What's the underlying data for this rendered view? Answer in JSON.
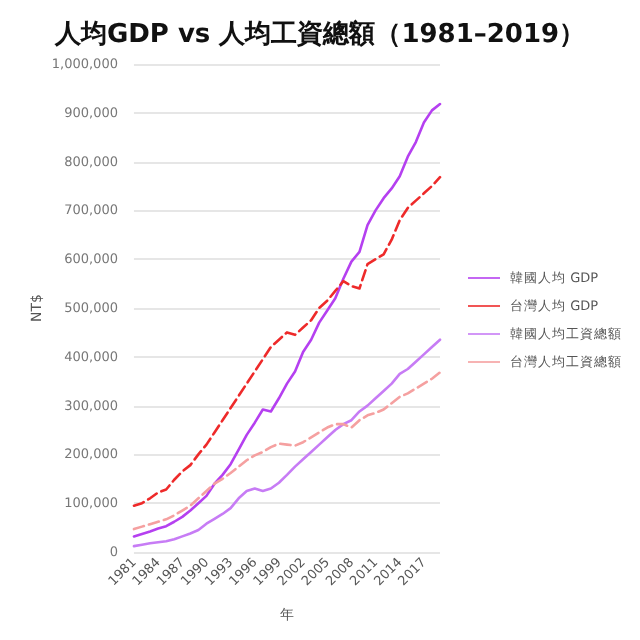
{
  "chart_data": {
    "type": "line",
    "title": "人均GDP vs 人均工資總額（1981–2019）",
    "xlabel": "年",
    "ylabel": "NT$",
    "categories": [
      "1981",
      null,
      null,
      "1984",
      null,
      null,
      "1987",
      null,
      null,
      "1990",
      null,
      null,
      "1993",
      null,
      null,
      "1996",
      null,
      null,
      "1999",
      null,
      null,
      "2002",
      null,
      null,
      "2005",
      null,
      null,
      "2008",
      null,
      null,
      "2011",
      null,
      null,
      "2014",
      null,
      null,
      "2017",
      null,
      null
    ],
    "series": [
      {
        "name": "韓國人均 GDP",
        "color": "#b540f0",
        "line_style": "solid",
        "values": [
          32000,
          37000,
          42000,
          48000,
          53000,
          62000,
          72000,
          85000,
          100000,
          115000,
          140000,
          158000,
          180000,
          210000,
          240000,
          265000,
          292000,
          288000,
          315000,
          345000,
          370000,
          410000,
          435000,
          470000,
          495000,
          520000,
          560000,
          595000,
          615000,
          670000,
          700000,
          725000,
          745000,
          770000,
          810000,
          840000,
          880000,
          905000,
          918000
        ]
      },
      {
        "name": "台灣人均 GDP",
        "color": "#ee2a2a",
        "line_style": "dashed",
        "values": [
          95000,
          100000,
          110000,
          122000,
          128000,
          148000,
          165000,
          178000,
          200000,
          220000,
          245000,
          270000,
          295000,
          320000,
          345000,
          370000,
          395000,
          420000,
          435000,
          450000,
          445000,
          460000,
          475000,
          500000,
          515000,
          535000,
          555000,
          545000,
          540000,
          590000,
          600000,
          610000,
          640000,
          680000,
          705000,
          720000,
          735000,
          750000,
          768000
        ]
      },
      {
        "name": "韓國人均工資總額",
        "color": "#c77cf5",
        "line_style": "solid",
        "values": [
          12000,
          15000,
          18000,
          20000,
          22000,
          26000,
          32000,
          38000,
          45000,
          58000,
          68000,
          78000,
          90000,
          110000,
          125000,
          130000,
          125000,
          130000,
          142000,
          158000,
          175000,
          190000,
          205000,
          220000,
          235000,
          250000,
          262000,
          270000,
          288000,
          300000,
          315000,
          330000,
          345000,
          365000,
          375000,
          390000,
          405000,
          420000,
          435000
        ]
      },
      {
        "name": "台灣人均工資總額",
        "color": "#f5a0a0",
        "line_style": "dashed",
        "values": [
          47000,
          52000,
          57000,
          62000,
          67000,
          75000,
          85000,
          95000,
          110000,
          125000,
          140000,
          150000,
          162000,
          175000,
          188000,
          198000,
          205000,
          215000,
          222000,
          220000,
          218000,
          225000,
          235000,
          245000,
          255000,
          262000,
          262000,
          255000,
          270000,
          280000,
          285000,
          292000,
          305000,
          318000,
          325000,
          335000,
          345000,
          355000,
          368000
        ]
      }
    ],
    "ylim": [
      0,
      1000000
    ],
    "yticks": [
      0,
      {
        "value": 100000,
        "label": "100,000"
      },
      {
        "value": 200000,
        "label": "200,000"
      },
      {
        "value": 300000,
        "label": "300,000"
      },
      {
        "value": 400000,
        "label": "400,000"
      },
      {
        "value": 500000,
        "label": "500,000"
      },
      {
        "value": 600000,
        "label": "600,000"
      },
      {
        "value": 700000,
        "label": "700,000"
      },
      {
        "value": 800000,
        "label": "800,000"
      },
      {
        "value": 900000,
        "label": "900,000"
      },
      {
        "value": 1000000,
        "label": "1,000,000"
      }
    ],
    "grid": "y",
    "legend": "right",
    "marker": "none"
  }
}
